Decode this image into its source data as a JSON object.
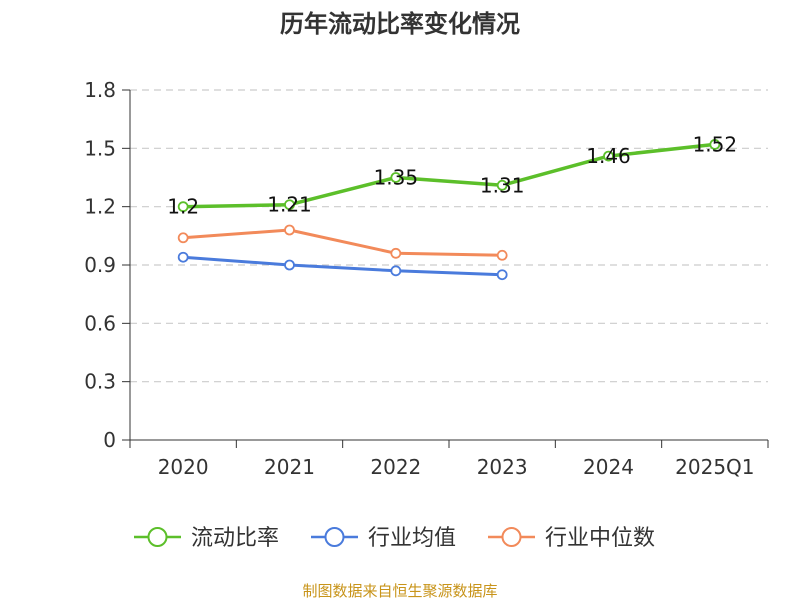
{
  "chart_data": {
    "type": "line",
    "title": "历年流动比率变化情况",
    "categories": [
      "2020",
      "2021",
      "2022",
      "2023",
      "2024",
      "2025Q1"
    ],
    "ylim": [
      0,
      1.8
    ],
    "yticks": [
      "0",
      "0.3",
      "0.6",
      "0.9",
      "1.2",
      "1.5",
      "1.8"
    ],
    "grid": true,
    "legend_position": "bottom",
    "series": [
      {
        "name": "流动比率",
        "color": "#5cbf2a",
        "values": [
          1.2,
          1.21,
          1.35,
          1.31,
          1.46,
          1.52
        ],
        "data_labels": [
          "1.2",
          "1.21",
          "1.35",
          "1.31",
          "1.46",
          "1.52"
        ],
        "smooth": false
      },
      {
        "name": "行业均值",
        "color": "#4a7bdc",
        "values": [
          0.94,
          0.9,
          0.87,
          0.85,
          null,
          null
        ],
        "data_labels": []
      },
      {
        "name": "行业中位数",
        "color": "#f28a5a",
        "values": [
          1.04,
          1.08,
          0.96,
          0.95,
          null,
          null
        ],
        "data_labels": []
      }
    ]
  },
  "footer": {
    "source": "制图数据来自恒生聚源数据库"
  }
}
